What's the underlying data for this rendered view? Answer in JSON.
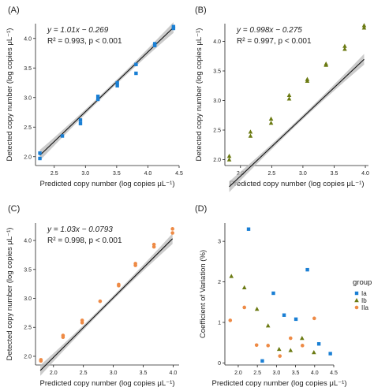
{
  "figure": {
    "legend_title": "group",
    "legend_items": [
      "Ia",
      "Ib",
      "IIa"
    ]
  },
  "colors": {
    "Ia": "#1a7fd4",
    "Ib": "#6b7a12",
    "IIa": "#ee8a45",
    "fit_line": "#111111",
    "ribbon": "#b9b9b9"
  },
  "chart_data": [
    {
      "panel": "(A)",
      "type": "scatter",
      "xlabel": "Predicted copy number (log copies μL⁻¹)",
      "ylabel": "Detected copy number (log copies μL⁻¹)",
      "xlim": [
        2.2,
        4.5
      ],
      "ylim": [
        1.85,
        4.25
      ],
      "xticks": [
        2.5,
        3.0,
        3.5,
        4.0,
        4.5
      ],
      "yticks": [
        2.0,
        2.5,
        3.0,
        3.5,
        4.0
      ],
      "grid": false,
      "equation": "y = 1.01x − 0.269",
      "stats": "R² = 0.993, p < 0.001",
      "fit": {
        "slope": 1.01,
        "intercept": -0.269,
        "x_range": [
          2.27,
          4.41
        ]
      },
      "series": [
        {
          "group": "Ia",
          "marker": "square",
          "x": [
            2.27,
            2.27,
            2.63,
            2.92,
            2.92,
            3.2,
            3.2,
            3.51,
            3.51,
            3.81,
            3.81,
            4.11,
            4.11,
            4.41,
            4.41
          ],
          "y": [
            2.06,
            1.97,
            2.35,
            2.56,
            2.62,
            2.97,
            3.02,
            3.2,
            3.25,
            3.41,
            3.56,
            3.88,
            3.91,
            4.17,
            4.2
          ]
        }
      ]
    },
    {
      "panel": "(B)",
      "type": "scatter",
      "xlabel": "Predicted copy number (log copies μL⁻¹)",
      "ylabel": "Detected copy number (log copies μL⁻¹)",
      "xlim": [
        1.75,
        4.05
      ],
      "ylim": [
        1.9,
        4.3
      ],
      "xticks": [
        2.0,
        2.5,
        3.0,
        3.5,
        4.0
      ],
      "yticks": [
        2.0,
        2.5,
        3.0,
        3.5,
        4.0
      ],
      "grid": false,
      "equation": "y = 0.998x − 0.275",
      "stats": "R² = 0.997, p < 0.001",
      "fit": {
        "slope": 0.998,
        "intercept": -0.275,
        "x_range": [
          1.82,
          3.98
        ]
      },
      "series": [
        {
          "group": "Ib",
          "marker": "triangle",
          "x": [
            1.82,
            1.82,
            2.16,
            2.16,
            2.49,
            2.49,
            2.78,
            2.78,
            3.07,
            3.07,
            3.37,
            3.37,
            3.67,
            3.67,
            3.98,
            3.98
          ],
          "y": [
            2.06,
            2.0,
            2.4,
            2.47,
            2.62,
            2.69,
            3.03,
            3.09,
            3.33,
            3.36,
            3.6,
            3.62,
            3.87,
            3.92,
            4.23,
            4.27
          ]
        }
      ]
    },
    {
      "panel": "(C)",
      "type": "scatter",
      "xlabel": "Predicted copy number (log copies μL⁻¹)",
      "ylabel": "Detected copy number (log copies μL⁻¹)",
      "xlim": [
        1.7,
        4.1
      ],
      "ylim": [
        1.85,
        4.3
      ],
      "xticks": [
        1.5,
        2.0,
        2.5,
        3.0,
        3.5,
        4.0
      ],
      "yticks": [
        2.0,
        2.5,
        3.0,
        3.5,
        4.0
      ],
      "grid": false,
      "equation": "y = 1.03x − 0.0793",
      "stats": "R² = 0.998, p < 0.001",
      "fit": {
        "slope": 1.03,
        "intercept": -0.0793,
        "x_range": [
          1.78,
          3.99
        ]
      },
      "series": [
        {
          "group": "IIa",
          "marker": "circle",
          "x": [
            1.79,
            1.79,
            2.16,
            2.16,
            2.48,
            2.48,
            2.78,
            3.09,
            3.09,
            3.37,
            3.37,
            3.68,
            3.68,
            3.99,
            3.99
          ],
          "y": [
            1.94,
            1.92,
            2.33,
            2.36,
            2.58,
            2.62,
            2.95,
            3.22,
            3.24,
            3.57,
            3.6,
            3.89,
            3.93,
            4.13,
            4.2
          ]
        }
      ]
    },
    {
      "panel": "(D)",
      "type": "scatter",
      "xlabel": "Predicted copy number (log copies μL⁻¹)",
      "ylabel": "Coefficient of Variation (%)",
      "xlim": [
        1.65,
        4.5
      ],
      "ylim": [
        -0.05,
        3.45
      ],
      "xticks": [
        2.0,
        2.5,
        3.0,
        3.5,
        4.0,
        4.5
      ],
      "yticks": [
        0,
        1,
        2,
        3
      ],
      "grid": false,
      "legend": "right",
      "series": [
        {
          "group": "Ia",
          "marker": "square",
          "x": [
            2.27,
            2.63,
            2.92,
            3.2,
            3.51,
            3.81,
            4.11,
            4.41
          ],
          "y": [
            3.3,
            0.05,
            1.72,
            1.18,
            1.08,
            2.3,
            0.47,
            0.23
          ]
        },
        {
          "group": "Ib",
          "marker": "triangle",
          "x": [
            1.82,
            2.16,
            2.49,
            2.78,
            3.07,
            3.37,
            3.67,
            3.98
          ],
          "y": [
            2.14,
            1.86,
            1.33,
            0.92,
            0.34,
            0.31,
            0.61,
            0.26
          ]
        },
        {
          "group": "IIa",
          "marker": "circle",
          "x": [
            1.79,
            2.16,
            2.48,
            2.78,
            3.09,
            3.37,
            3.68,
            3.99
          ],
          "y": [
            1.05,
            1.37,
            0.44,
            0.43,
            0.17,
            0.61,
            0.43,
            1.1
          ]
        }
      ]
    }
  ]
}
